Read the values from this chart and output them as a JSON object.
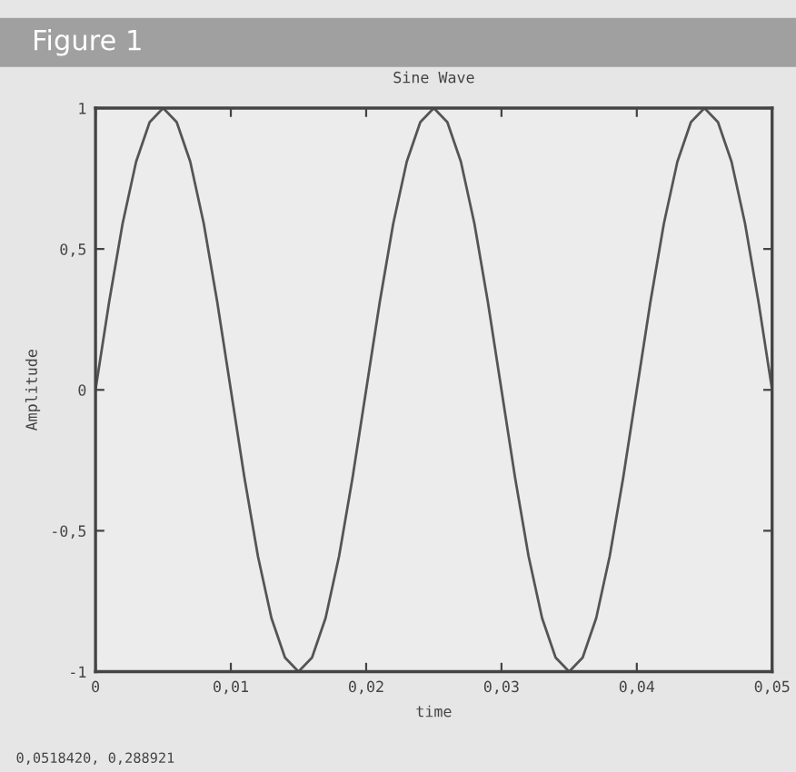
{
  "chart_data": {
    "type": "line",
    "title": "Sine Wave",
    "xlabel": "time",
    "ylabel": "Amplitude",
    "annotations": [
      "Figure 1",
      "0,0518420, 0,288921"
    ],
    "x": [
      0,
      0.001,
      0.002,
      0.003,
      0.004,
      0.005,
      0.006,
      0.007,
      0.008,
      0.009,
      0.01,
      0.011,
      0.012,
      0.013,
      0.014,
      0.015,
      0.016,
      0.017,
      0.018,
      0.019,
      0.02,
      0.021,
      0.022,
      0.023,
      0.024,
      0.025,
      0.026,
      0.027,
      0.028,
      0.029,
      0.03,
      0.031,
      0.032,
      0.033,
      0.034,
      0.035,
      0.036,
      0.037,
      0.038,
      0.039,
      0.04,
      0.041,
      0.042,
      0.043,
      0.044,
      0.045,
      0.046,
      0.047,
      0.048,
      0.049,
      0.05
    ],
    "series": [
      {
        "color": "#555555",
        "values": [
          0,
          0.31,
          0.59,
          0.81,
          0.95,
          1,
          0.95,
          0.81,
          0.59,
          0.31,
          0,
          -0.31,
          -0.59,
          -0.81,
          -0.95,
          -1,
          -0.95,
          -0.81,
          -0.59,
          -0.31,
          0,
          0.31,
          0.59,
          0.81,
          0.95,
          1,
          0.95,
          0.81,
          0.59,
          0.31,
          0,
          -0.31,
          -0.59,
          -0.81,
          -0.95,
          -1,
          -0.95,
          -0.81,
          -0.59,
          -0.31,
          0,
          0.31,
          0.59,
          0.81,
          0.95,
          1,
          0.95,
          0.81,
          0.59,
          0.31,
          0
        ]
      }
    ],
    "xlim": [
      0,
      0.05
    ],
    "xticks": [
      0,
      {
        "value": 0.01,
        "label": "0,01"
      },
      {
        "value": 0.02,
        "label": "0,02"
      },
      {
        "value": 0.03,
        "label": "0,03"
      },
      {
        "value": 0.04,
        "label": "0,04"
      },
      {
        "value": 0.05,
        "label": "0,05"
      }
    ],
    "ylim": [
      -1,
      1
    ],
    "yticks": [
      -1,
      {
        "value": -0.5,
        "label": "-0,5"
      },
      0,
      {
        "value": 0.5,
        "label": "0,5"
      },
      1
    ],
    "grid": false,
    "legend": false,
    "marker": "none",
    "line_style": "solid"
  }
}
